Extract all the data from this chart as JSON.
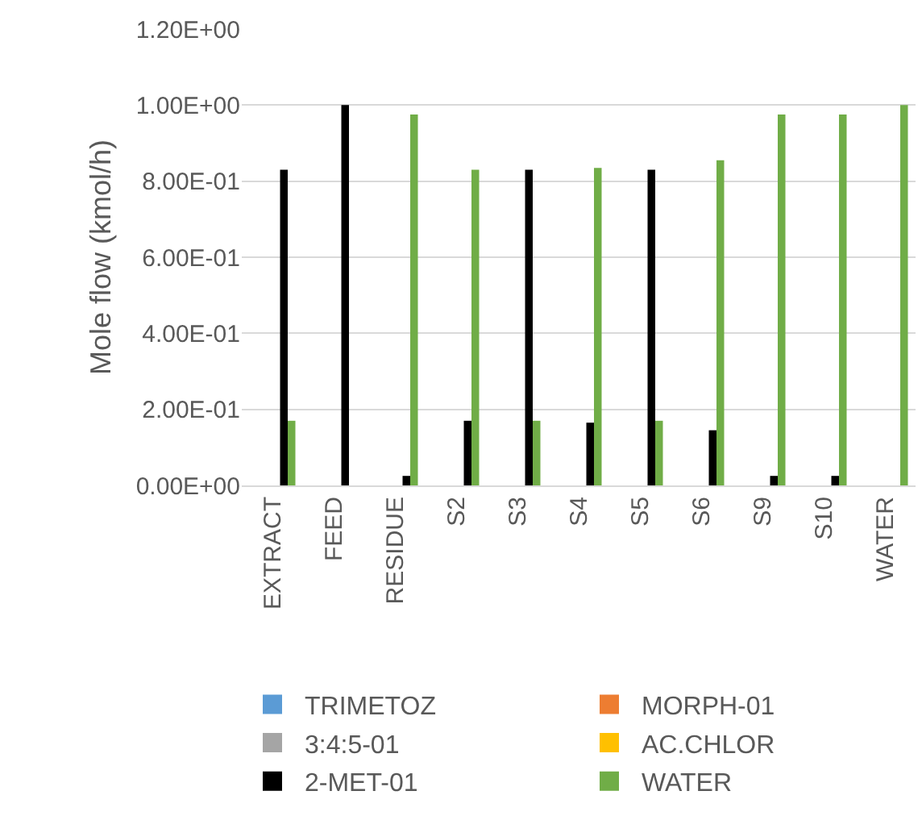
{
  "chart_data": {
    "type": "bar",
    "ylabel": "Mole flow (kmol/h)",
    "categories": [
      "EXTRACT",
      "FEED",
      "RESIDUE",
      "S2",
      "S3",
      "S4",
      "S5",
      "S6",
      "S9",
      "S10",
      "WATER"
    ],
    "series": [
      {
        "name": "TRIMETOZ",
        "color": "#5b9bd5",
        "values": [
          0,
          0,
          0,
          0,
          0,
          0,
          0,
          0,
          0,
          0,
          0
        ]
      },
      {
        "name": "MORPH-01",
        "color": "#ed7d31",
        "values": [
          0,
          0,
          0,
          0,
          0,
          0,
          0,
          0,
          0,
          0,
          0
        ]
      },
      {
        "name": "3:4:5-01",
        "color": "#a5a5a5",
        "values": [
          0,
          0,
          0,
          0,
          0,
          0,
          0,
          0,
          0,
          0,
          0
        ]
      },
      {
        "name": "AC.CHLOR",
        "color": "#ffc000",
        "values": [
          0,
          0,
          0,
          0,
          0,
          0,
          0,
          0,
          0,
          0,
          0
        ]
      },
      {
        "name": "2-MET-01",
        "color": "#000000",
        "values": [
          0.83,
          1.0,
          0.025,
          0.17,
          0.83,
          0.165,
          0.83,
          0.145,
          0.025,
          0.025,
          0
        ]
      },
      {
        "name": "WATER",
        "color": "#70ad47",
        "values": [
          0.17,
          0,
          0.975,
          0.83,
          0.17,
          0.835,
          0.17,
          0.855,
          0.975,
          0.975,
          1.0
        ]
      }
    ],
    "ylim": [
      0,
      1.2
    ],
    "yticks": [
      {
        "value": 0,
        "label": "0.00E+00"
      },
      {
        "value": 0.2,
        "label": "2.00E-01"
      },
      {
        "value": 0.4,
        "label": "4.00E-01"
      },
      {
        "value": 0.6,
        "label": "6.00E-01"
      },
      {
        "value": 0.8,
        "label": "8.00E-01"
      },
      {
        "value": 1.0,
        "label": "1.00E+00"
      },
      {
        "value": 1.2,
        "label": "1.20E+00"
      }
    ],
    "grid": "y",
    "legend": "bottom"
  }
}
